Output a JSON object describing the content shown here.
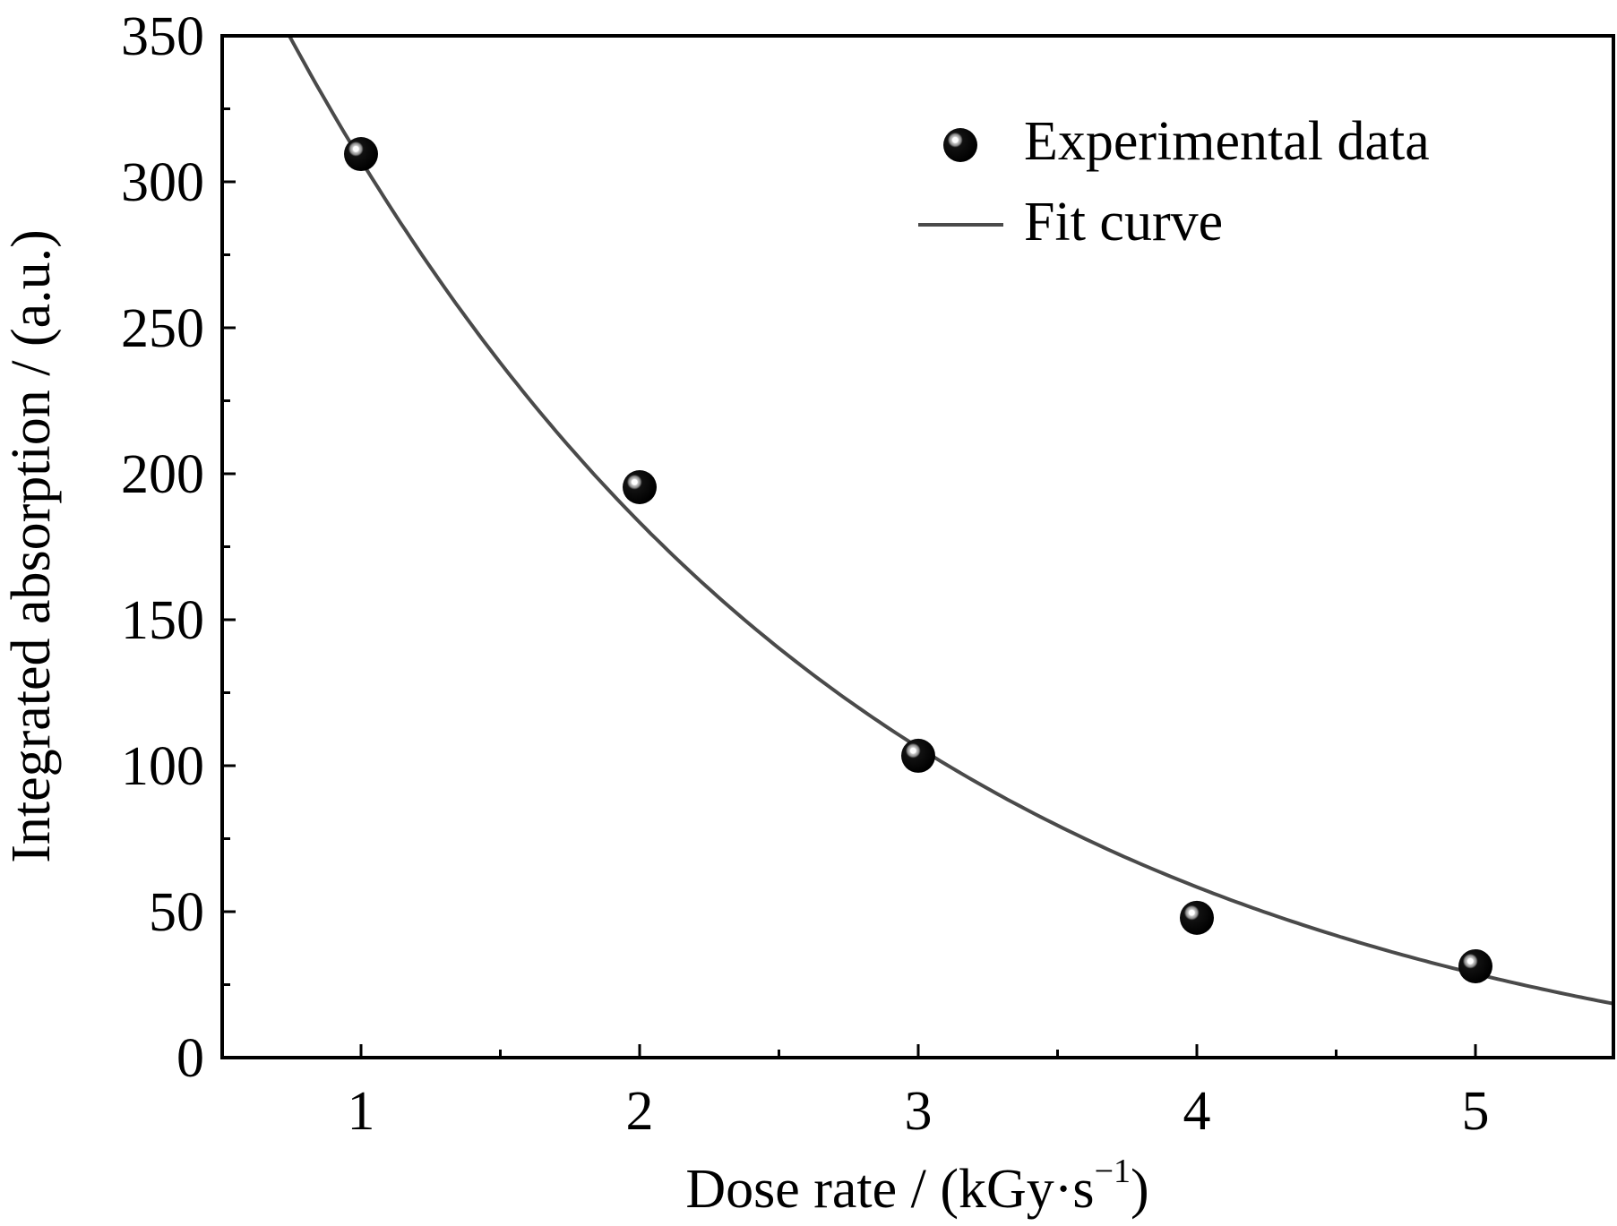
{
  "chart_data": {
    "type": "scatter",
    "title": "",
    "xlabel": "Dose rate / (kGy·s",
    "xlabel_superscript": "−1",
    "xlabel_close": ")",
    "ylabel": "Integrated absorption / (a.u.)",
    "xlim": [
      0.5,
      5.5
    ],
    "ylim": [
      0,
      350
    ],
    "x_ticks": [
      1,
      2,
      3,
      4,
      5
    ],
    "x_tick_labels": [
      "1",
      "2",
      "3",
      "4",
      "5"
    ],
    "y_ticks": [
      0,
      50,
      100,
      150,
      200,
      250,
      300,
      350
    ],
    "y_tick_labels": [
      "0",
      "50",
      "100",
      "150",
      "200",
      "250",
      "300",
      "350"
    ],
    "grid": false,
    "legend_position": "top-right",
    "series": [
      {
        "name": "Experimental data",
        "kind": "scatter",
        "x": [
          1,
          2,
          3,
          4,
          5
        ],
        "y": [
          309.5,
          195.4,
          103.4,
          47.9,
          31.3
        ],
        "color": "#000000"
      },
      {
        "name": "Fit curve",
        "kind": "line",
        "model": "exponential decay",
        "params": {
          "A": 527,
          "t": 2.1,
          "y0": -20
        },
        "color": "#4a4a4a"
      }
    ]
  }
}
